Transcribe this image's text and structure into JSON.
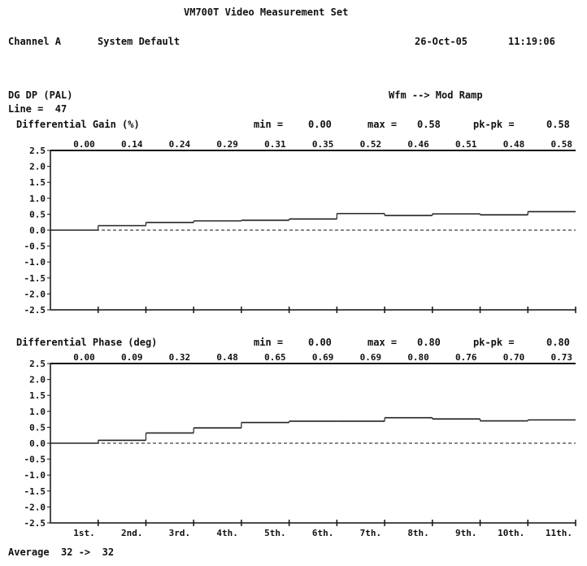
{
  "header": {
    "title": "VM700T Video Measurement Set",
    "channel": "Channel A",
    "setup": "System Default",
    "date": "26-Oct-05",
    "time": "11:19:06"
  },
  "measurement": {
    "name": "DG DP (PAL)",
    "line": "Line =  47",
    "waveform": "Wfm --> Mod Ramp",
    "average": "Average  32 ->  32"
  },
  "chart_data": [
    {
      "type": "line",
      "title": "Differential Gain (%)",
      "min_label": "min =",
      "min": "0.00",
      "max_label": "max =",
      "max": "0.58",
      "pkpk_label": "pk-pk =",
      "pkpk": "0.58",
      "categories": [
        "1st.",
        "2nd.",
        "3rd.",
        "4th.",
        "5th.",
        "6th.",
        "7th.",
        "8th.",
        "9th.",
        "10th.",
        "11th."
      ],
      "values": [
        0.0,
        0.14,
        0.24,
        0.29,
        0.31,
        0.35,
        0.52,
        0.46,
        0.51,
        0.48,
        0.58
      ],
      "value_labels": [
        "0.00",
        "0.14",
        "0.24",
        "0.29",
        "0.31",
        "0.35",
        "0.52",
        "0.46",
        "0.51",
        "0.48",
        "0.58"
      ],
      "yticks": [
        "2.5",
        "2.0",
        "1.5",
        "1.0",
        "0.5",
        "0.0",
        "-0.5",
        "-1.0",
        "-1.5",
        "-2.0",
        "-2.5"
      ],
      "ylim": [
        -2.5,
        2.5
      ],
      "grid": false
    },
    {
      "type": "line",
      "title": "Differential Phase (deg)",
      "min_label": "min =",
      "min": "0.00",
      "max_label": "max =",
      "max": "0.80",
      "pkpk_label": "pk-pk =",
      "pkpk": "0.80",
      "categories": [
        "1st.",
        "2nd.",
        "3rd.",
        "4th.",
        "5th.",
        "6th.",
        "7th.",
        "8th.",
        "9th.",
        "10th.",
        "11th."
      ],
      "values": [
        0.0,
        0.09,
        0.32,
        0.48,
        0.65,
        0.69,
        0.69,
        0.8,
        0.76,
        0.7,
        0.73
      ],
      "value_labels": [
        "0.00",
        "0.09",
        "0.32",
        "0.48",
        "0.65",
        "0.69",
        "0.69",
        "0.80",
        "0.76",
        "0.70",
        "0.73"
      ],
      "yticks": [
        "2.5",
        "2.0",
        "1.5",
        "1.0",
        "0.5",
        "0.0",
        "-0.5",
        "-1.0",
        "-1.5",
        "-2.0",
        "-2.5"
      ],
      "ylim": [
        -2.5,
        2.5
      ],
      "grid": false
    }
  ]
}
